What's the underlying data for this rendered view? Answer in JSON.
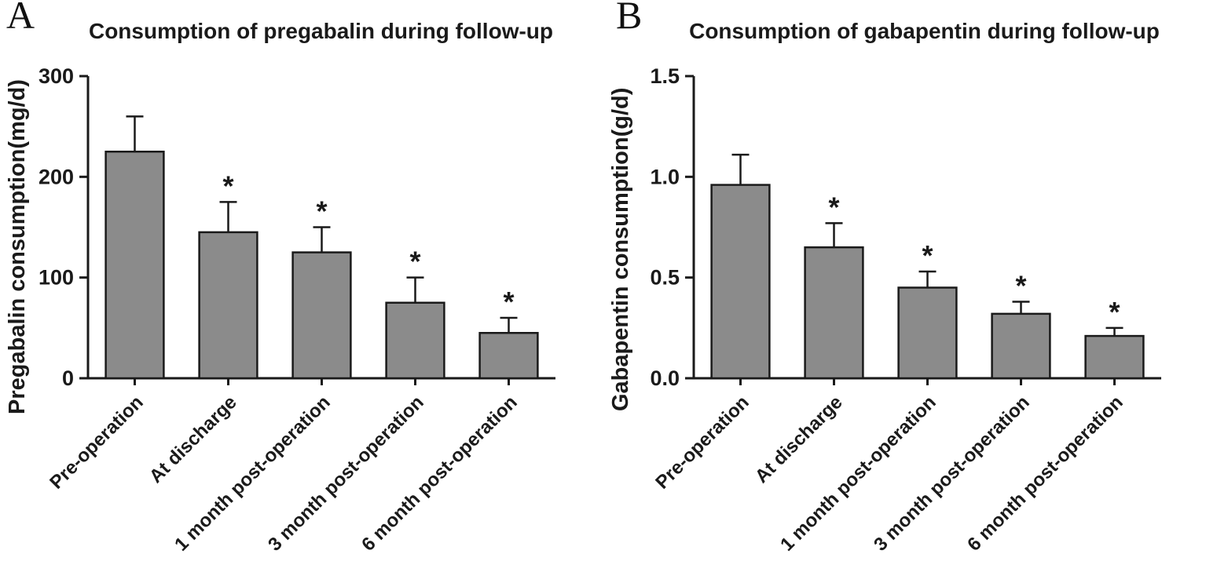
{
  "style": {
    "bar_fill": "#8b8b8b",
    "axis_color": "#1a1a1a",
    "text_color": "#1a1a1a",
    "background": "#ffffff"
  },
  "chart_data": [
    {
      "type": "bar",
      "panel_label": "A",
      "title": "Consumption of pregabalin during follow-up",
      "xlabel": "",
      "ylabel": "Pregabalin consumption(mg/d)",
      "categories": [
        "Pre-operation",
        "At discharge",
        "1 month post-operation",
        "3 month post-operation",
        "6 month post-operation"
      ],
      "values": [
        225,
        145,
        125,
        75,
        45
      ],
      "errors": [
        35,
        30,
        25,
        25,
        15
      ],
      "significance": [
        "",
        "*",
        "*",
        "*",
        "*"
      ],
      "ylim": [
        0,
        300
      ],
      "yticks": [
        0,
        100,
        200,
        300
      ],
      "ytick_labels": [
        "0",
        "100",
        "200",
        "300"
      ],
      "grid": false,
      "legend": "none"
    },
    {
      "type": "bar",
      "panel_label": "B",
      "title": "Consumption of  gabapentin during follow-up",
      "xlabel": "",
      "ylabel": "Gabapentin consumption(g/d)",
      "categories": [
        "Pre-operation",
        "At discharge",
        "1 month post-operation",
        "3 month post-operation",
        "6 month post-operation"
      ],
      "values": [
        0.96,
        0.65,
        0.45,
        0.32,
        0.21
      ],
      "errors": [
        0.15,
        0.12,
        0.08,
        0.06,
        0.04
      ],
      "significance": [
        "",
        "*",
        "*",
        "*",
        "*"
      ],
      "ylim": [
        0,
        1.5
      ],
      "yticks": [
        0,
        0.5,
        1.0,
        1.5
      ],
      "ytick_labels": [
        "0.0",
        "0.5",
        "1.0",
        "1.5"
      ],
      "grid": false,
      "legend": "none"
    }
  ]
}
